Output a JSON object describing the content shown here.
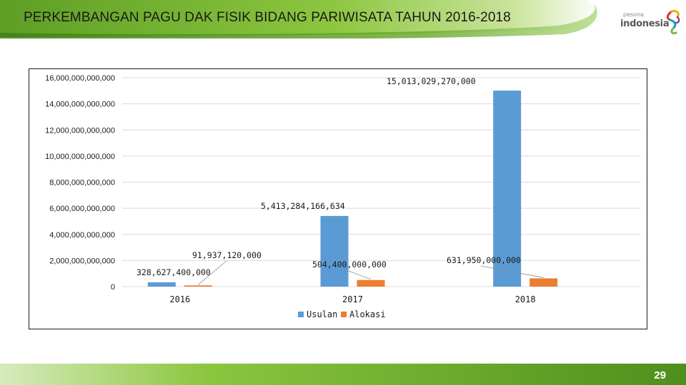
{
  "slide": {
    "title": "PERKEMBANGAN PAGU DAK FISIK BIDANG PARIWISATA TAHUN 2016-2018",
    "page_number": "29"
  },
  "logo": {
    "tagline": "pesona",
    "brand": "indonesia"
  },
  "colors": {
    "header_green": "#7db83a",
    "footer_green": "#6aab2e",
    "usulan": "#5b9bd5",
    "alokasi": "#ed7d31"
  },
  "chart_data": {
    "type": "bar",
    "categories": [
      "2016",
      "2017",
      "2018"
    ],
    "series": [
      {
        "name": "Usulan",
        "values": [
          328627400000,
          5413284166634,
          15013029270000
        ],
        "labels": [
          "328,627,400,000",
          "5,413,284,166,634",
          "15,013,029,270,000"
        ]
      },
      {
        "name": "Alokasi",
        "values": [
          91937120000,
          504400000000,
          631950000000
        ],
        "labels": [
          "91,937,120,000",
          "504,400,000,000",
          "631,950,000,000"
        ]
      }
    ],
    "ylim": [
      0,
      16000000000000
    ],
    "yticks": [
      "0",
      "2,000,000,000,000",
      "4,000,000,000,000",
      "6,000,000,000,000",
      "8,000,000,000,000",
      "10,000,000,000,000",
      "12,000,000,000,000",
      "14,000,000,000,000",
      "16,000,000,000,000"
    ],
    "grid": true,
    "legend_position": "bottom"
  }
}
